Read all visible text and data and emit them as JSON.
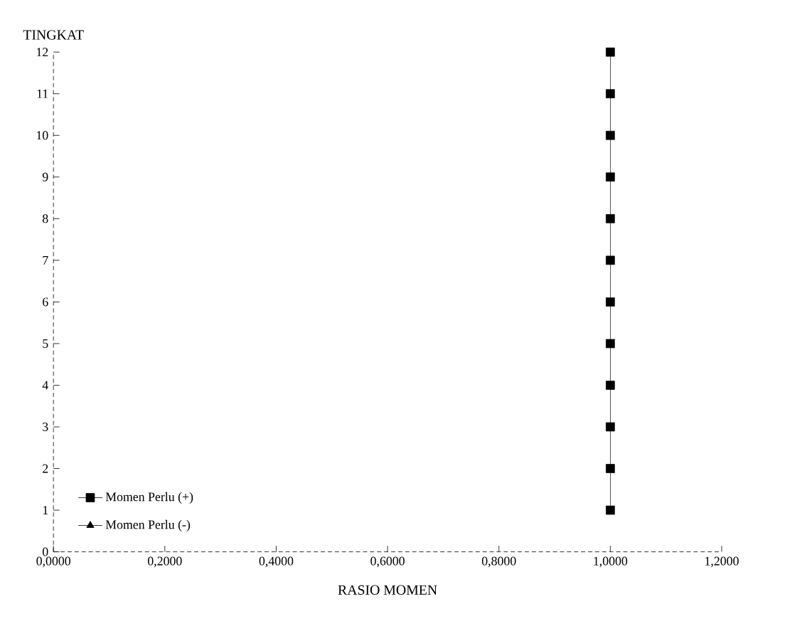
{
  "chart_data": {
    "type": "line",
    "orientation": "horizontal",
    "xlabel": "RASIO MOMEN",
    "ylabel": "TINGKAT",
    "xlim": [
      0,
      1.2
    ],
    "ylim": [
      0,
      12
    ],
    "xticks": [
      {
        "value": 0,
        "label": "0,0000"
      },
      {
        "value": 0.2,
        "label": "0,2000"
      },
      {
        "value": 0.4,
        "label": "0,4000"
      },
      {
        "value": 0.6,
        "label": "0,6000"
      },
      {
        "value": 0.8,
        "label": "0,8000"
      },
      {
        "value": 1.0,
        "label": "1,0000"
      },
      {
        "value": 1.2,
        "label": "1,2000"
      }
    ],
    "yticks": [
      0,
      1,
      2,
      3,
      4,
      5,
      6,
      7,
      8,
      9,
      10,
      11,
      12
    ],
    "legend": "bottom left",
    "x": [
      1,
      2,
      3,
      4,
      5,
      6,
      7,
      8,
      9,
      10,
      11,
      12
    ],
    "series": [
      {
        "name": "Momen Perlu (+)",
        "color": "#000000",
        "marker": "square",
        "values": [
          1,
          1,
          1,
          1,
          1,
          1,
          1,
          1,
          1,
          1,
          1,
          1
        ]
      },
      {
        "name": "Momen Perlu (-)",
        "color": "#000000",
        "marker": "triangle",
        "values": [
          null,
          null,
          null,
          null,
          null,
          null,
          null,
          null,
          null,
          null,
          null,
          null
        ]
      }
    ]
  }
}
